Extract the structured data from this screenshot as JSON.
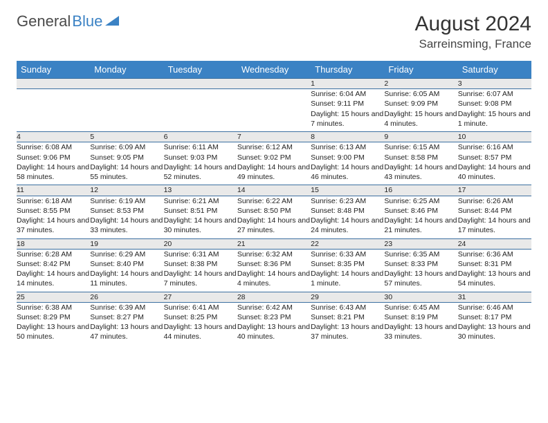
{
  "logo": {
    "part1": "General",
    "part2": "Blue"
  },
  "title": "August 2024",
  "location": "Sarreinsming, France",
  "colors": {
    "header_bg": "#3b82c4",
    "header_text": "#ffffff",
    "daynum_bg": "#e9e9e9",
    "border": "#3b6fa0",
    "logo_gray": "#4a4a4a",
    "logo_blue": "#3b82c4"
  },
  "weekdays": [
    "Sunday",
    "Monday",
    "Tuesday",
    "Wednesday",
    "Thursday",
    "Friday",
    "Saturday"
  ],
  "weeks": [
    [
      null,
      null,
      null,
      null,
      {
        "n": "1",
        "sr": "6:04 AM",
        "ss": "9:11 PM",
        "dl": "15 hours and 7 minutes."
      },
      {
        "n": "2",
        "sr": "6:05 AM",
        "ss": "9:09 PM",
        "dl": "15 hours and 4 minutes."
      },
      {
        "n": "3",
        "sr": "6:07 AM",
        "ss": "9:08 PM",
        "dl": "15 hours and 1 minute."
      }
    ],
    [
      {
        "n": "4",
        "sr": "6:08 AM",
        "ss": "9:06 PM",
        "dl": "14 hours and 58 minutes."
      },
      {
        "n": "5",
        "sr": "6:09 AM",
        "ss": "9:05 PM",
        "dl": "14 hours and 55 minutes."
      },
      {
        "n": "6",
        "sr": "6:11 AM",
        "ss": "9:03 PM",
        "dl": "14 hours and 52 minutes."
      },
      {
        "n": "7",
        "sr": "6:12 AM",
        "ss": "9:02 PM",
        "dl": "14 hours and 49 minutes."
      },
      {
        "n": "8",
        "sr": "6:13 AM",
        "ss": "9:00 PM",
        "dl": "14 hours and 46 minutes."
      },
      {
        "n": "9",
        "sr": "6:15 AM",
        "ss": "8:58 PM",
        "dl": "14 hours and 43 minutes."
      },
      {
        "n": "10",
        "sr": "6:16 AM",
        "ss": "8:57 PM",
        "dl": "14 hours and 40 minutes."
      }
    ],
    [
      {
        "n": "11",
        "sr": "6:18 AM",
        "ss": "8:55 PM",
        "dl": "14 hours and 37 minutes."
      },
      {
        "n": "12",
        "sr": "6:19 AM",
        "ss": "8:53 PM",
        "dl": "14 hours and 33 minutes."
      },
      {
        "n": "13",
        "sr": "6:21 AM",
        "ss": "8:51 PM",
        "dl": "14 hours and 30 minutes."
      },
      {
        "n": "14",
        "sr": "6:22 AM",
        "ss": "8:50 PM",
        "dl": "14 hours and 27 minutes."
      },
      {
        "n": "15",
        "sr": "6:23 AM",
        "ss": "8:48 PM",
        "dl": "14 hours and 24 minutes."
      },
      {
        "n": "16",
        "sr": "6:25 AM",
        "ss": "8:46 PM",
        "dl": "14 hours and 21 minutes."
      },
      {
        "n": "17",
        "sr": "6:26 AM",
        "ss": "8:44 PM",
        "dl": "14 hours and 17 minutes."
      }
    ],
    [
      {
        "n": "18",
        "sr": "6:28 AM",
        "ss": "8:42 PM",
        "dl": "14 hours and 14 minutes."
      },
      {
        "n": "19",
        "sr": "6:29 AM",
        "ss": "8:40 PM",
        "dl": "14 hours and 11 minutes."
      },
      {
        "n": "20",
        "sr": "6:31 AM",
        "ss": "8:38 PM",
        "dl": "14 hours and 7 minutes."
      },
      {
        "n": "21",
        "sr": "6:32 AM",
        "ss": "8:36 PM",
        "dl": "14 hours and 4 minutes."
      },
      {
        "n": "22",
        "sr": "6:33 AM",
        "ss": "8:35 PM",
        "dl": "14 hours and 1 minute."
      },
      {
        "n": "23",
        "sr": "6:35 AM",
        "ss": "8:33 PM",
        "dl": "13 hours and 57 minutes."
      },
      {
        "n": "24",
        "sr": "6:36 AM",
        "ss": "8:31 PM",
        "dl": "13 hours and 54 minutes."
      }
    ],
    [
      {
        "n": "25",
        "sr": "6:38 AM",
        "ss": "8:29 PM",
        "dl": "13 hours and 50 minutes."
      },
      {
        "n": "26",
        "sr": "6:39 AM",
        "ss": "8:27 PM",
        "dl": "13 hours and 47 minutes."
      },
      {
        "n": "27",
        "sr": "6:41 AM",
        "ss": "8:25 PM",
        "dl": "13 hours and 44 minutes."
      },
      {
        "n": "28",
        "sr": "6:42 AM",
        "ss": "8:23 PM",
        "dl": "13 hours and 40 minutes."
      },
      {
        "n": "29",
        "sr": "6:43 AM",
        "ss": "8:21 PM",
        "dl": "13 hours and 37 minutes."
      },
      {
        "n": "30",
        "sr": "6:45 AM",
        "ss": "8:19 PM",
        "dl": "13 hours and 33 minutes."
      },
      {
        "n": "31",
        "sr": "6:46 AM",
        "ss": "8:17 PM",
        "dl": "13 hours and 30 minutes."
      }
    ]
  ],
  "labels": {
    "sunrise": "Sunrise:",
    "sunset": "Sunset:",
    "daylight": "Daylight:"
  }
}
